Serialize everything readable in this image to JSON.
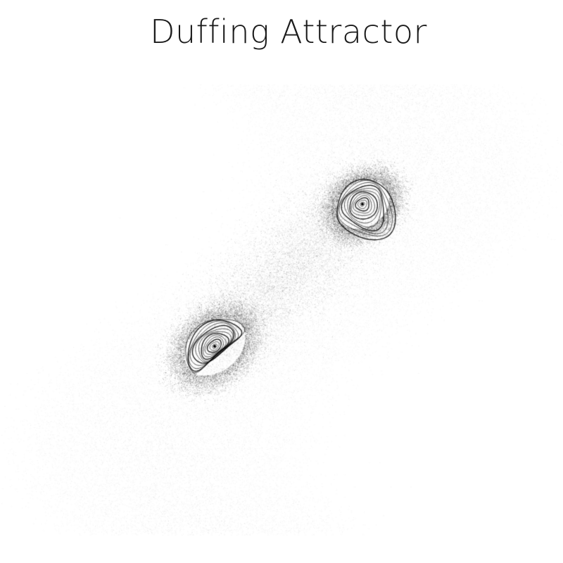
{
  "title": "Duffing Attractor",
  "colors": {
    "background": "#ffffff",
    "ink": "#000000"
  }
}
